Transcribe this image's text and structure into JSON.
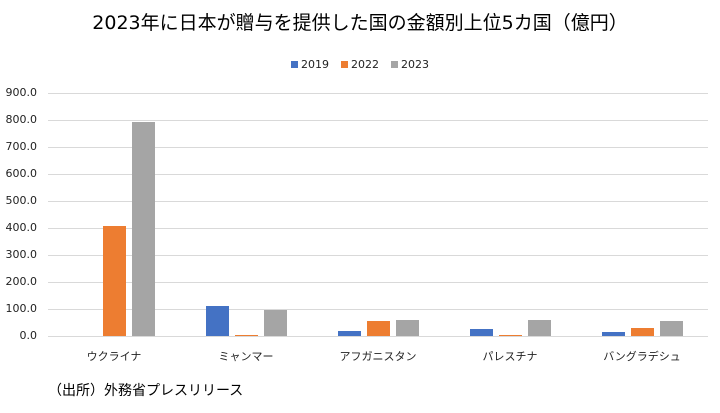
{
  "chart_data": {
    "type": "bar",
    "title": "2023年に日本が贈与を提供した国の金額別上位5カ国（億円）",
    "categories": [
      "ウクライナ",
      "ミャンマー",
      "アフガニスタン",
      "パレスチナ",
      "バングラデシュ"
    ],
    "series": [
      {
        "name": "2019",
        "color": "#4472c4",
        "values": [
          0,
          110,
          19,
          26,
          14
        ]
      },
      {
        "name": "2022",
        "color": "#ed7d31",
        "values": [
          408,
          4,
          56,
          5,
          31
        ]
      },
      {
        "name": "2023",
        "color": "#a5a5a5",
        "values": [
          792,
          97,
          60,
          60,
          56
        ]
      }
    ],
    "xlabel": "",
    "ylabel": "",
    "ylim": [
      0,
      900
    ],
    "yticks": [
      "0.0",
      "100.0",
      "200.0",
      "300.0",
      "400.0",
      "500.0",
      "600.0",
      "700.0",
      "800.0",
      "900.0"
    ],
    "grid": true,
    "legend_position": "top",
    "annotations": [
      "（出所）外務省プレスリリース"
    ]
  },
  "title": "2023年に日本が贈与を提供した国の金額別上位5カ国（億円）",
  "source": "（出所）外務省プレスリリース"
}
